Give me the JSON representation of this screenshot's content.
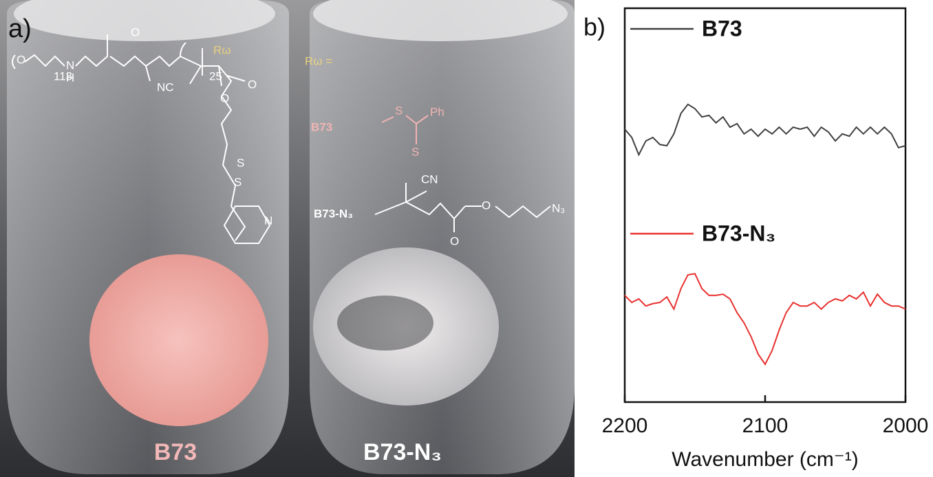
{
  "panel_a": {
    "label": "a)",
    "vial_labels": [
      "B73",
      "B73-N₃"
    ],
    "structure_texts": [
      "O",
      "N",
      "H",
      "113",
      "NC",
      "O",
      "O",
      "25",
      "Rω",
      "S",
      "S",
      "N"
    ],
    "r_group": {
      "label": "Rω =",
      "b73": "B73",
      "b73_atoms": [
        "S",
        "Ph",
        "S"
      ],
      "b73n3": "B73-N₃",
      "b73n3_atoms": [
        "CN",
        "O",
        "O",
        "N₃"
      ]
    }
  },
  "chart_data": {
    "type": "line",
    "panel_label": "b)",
    "xlabel": "Wavenumber (cm⁻¹)",
    "x": [
      2200,
      2195,
      2190,
      2185,
      2180,
      2175,
      2170,
      2165,
      2160,
      2155,
      2150,
      2145,
      2140,
      2135,
      2130,
      2125,
      2120,
      2115,
      2110,
      2105,
      2100,
      2095,
      2090,
      2085,
      2080,
      2075,
      2070,
      2065,
      2060,
      2055,
      2050,
      2045,
      2040,
      2035,
      2030,
      2025,
      2020,
      2015,
      2010,
      2005,
      2000
    ],
    "xlim": [
      2200,
      2000
    ],
    "xticks": [
      2200,
      2100,
      2000
    ],
    "ylim": [
      0,
      100
    ],
    "series": [
      {
        "name": "B73",
        "color": "#404040",
        "values": [
          69.3,
          67.2,
          62.8,
          66.3,
          67.2,
          65.4,
          65.1,
          68.1,
          73.3,
          75.6,
          74.5,
          72.4,
          72.8,
          70.9,
          72.4,
          69.8,
          70.7,
          68.1,
          69.3,
          67.5,
          69.3,
          68.1,
          69.8,
          68.1,
          69.8,
          69.3,
          69.8,
          67.5,
          69.8,
          68.6,
          66.3,
          68.1,
          67.5,
          69.8,
          68.1,
          69.8,
          68.1,
          69.8,
          68.1,
          64.6,
          65.1
        ]
      },
      {
        "name": "B73-N₃",
        "color": "#e8302e",
        "values": [
          27.1,
          25.3,
          26.2,
          24.4,
          25.0,
          25.3,
          26.7,
          23.6,
          28.8,
          32.3,
          32.6,
          28.8,
          27.1,
          27.1,
          27.4,
          26.2,
          22.7,
          20.1,
          16.6,
          12.2,
          9.6,
          13.1,
          18.3,
          22.7,
          25.3,
          24.4,
          24.4,
          25.3,
          23.6,
          25.3,
          26.2,
          25.7,
          27.1,
          26.2,
          27.9,
          24.4,
          27.4,
          25.3,
          24.4,
          24.4,
          23.6
        ]
      }
    ]
  }
}
